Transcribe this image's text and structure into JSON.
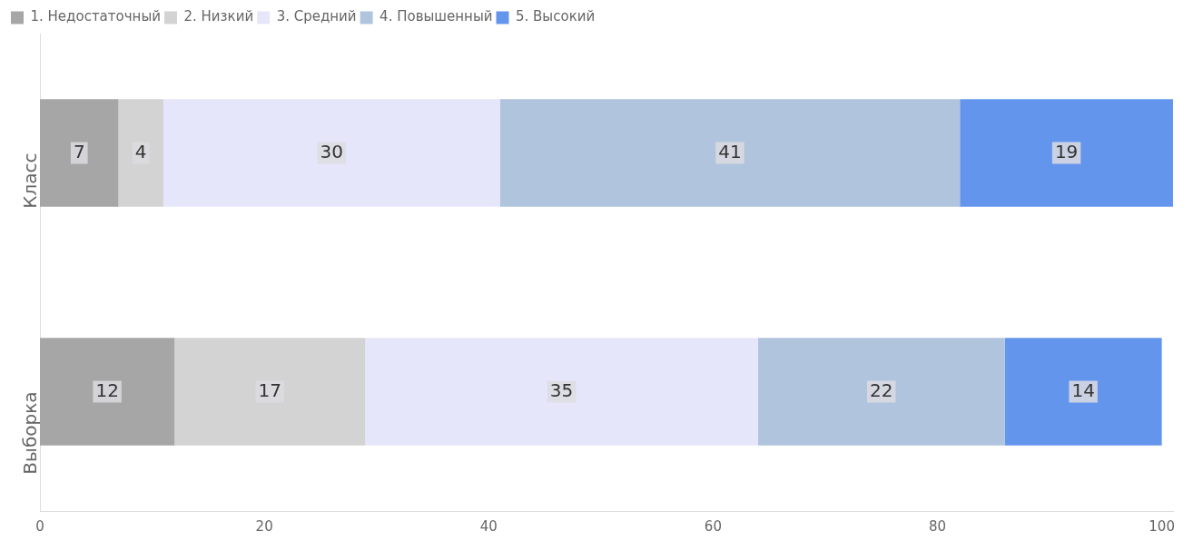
{
  "chart_data": {
    "type": "bar",
    "orientation": "horizontal",
    "stacked": true,
    "categories": [
      "Класс",
      "Выборка"
    ],
    "series": [
      {
        "name": "1. Недостаточный",
        "color": "#a6a6a6",
        "values": [
          7,
          12
        ]
      },
      {
        "name": "2. Низкий",
        "color": "#d3d3d3",
        "values": [
          4,
          17
        ]
      },
      {
        "name": "3. Средний",
        "color": "#e6e6fa",
        "values": [
          30,
          35
        ]
      },
      {
        "name": "4. Повышенный",
        "color": "#b0c4de",
        "values": [
          41,
          22
        ]
      },
      {
        "name": "5. Высокий",
        "color": "#6495ed",
        "values": [
          19,
          14
        ]
      }
    ],
    "xlim": [
      0,
      101
    ],
    "xticks": [
      0,
      20,
      40,
      60,
      80,
      100
    ],
    "grid": false,
    "legend": "top left",
    "data_labels": true
  }
}
